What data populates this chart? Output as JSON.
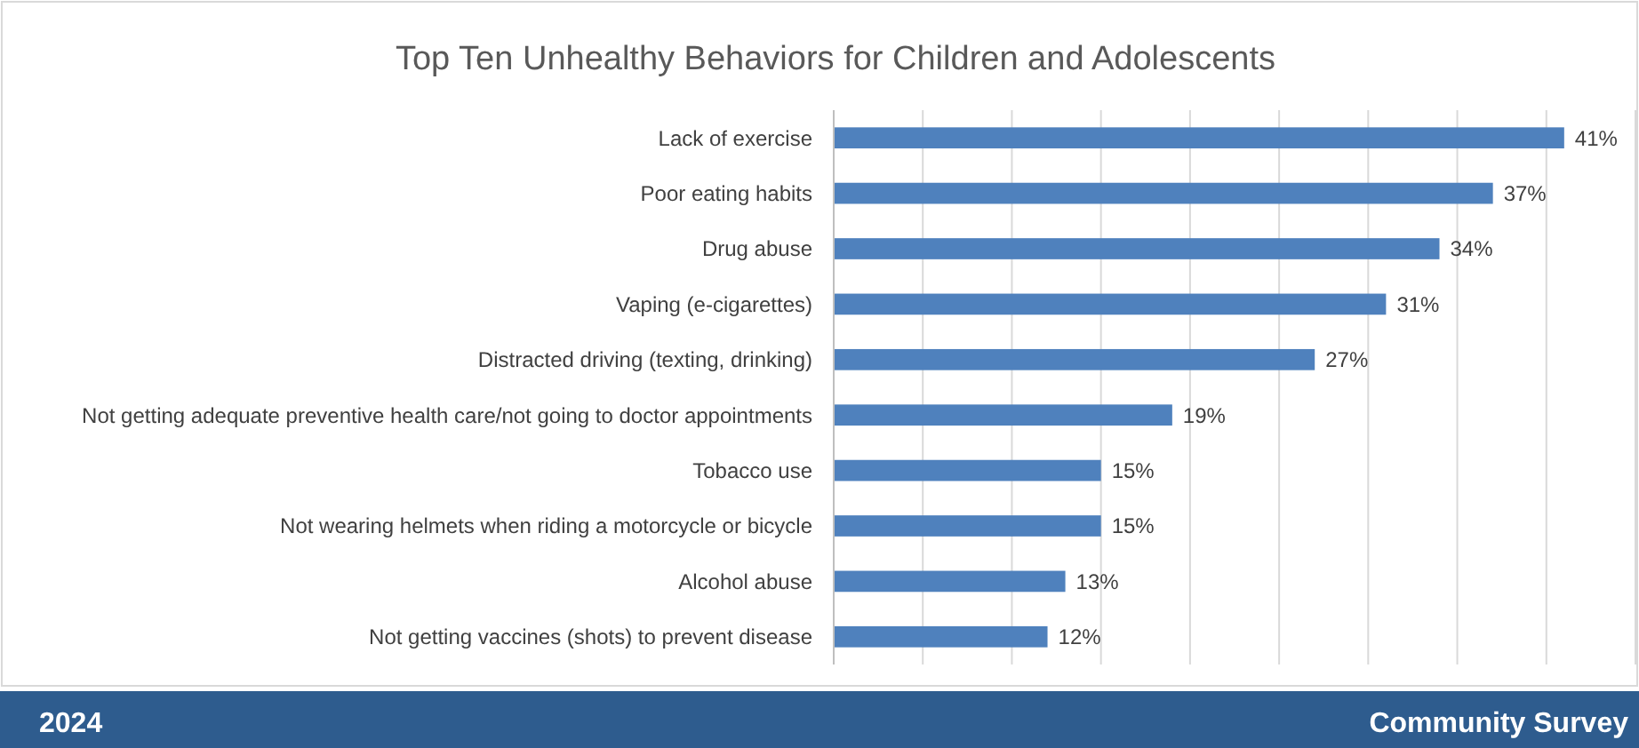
{
  "chart_data": {
    "type": "bar",
    "orientation": "horizontal",
    "title": "Top Ten Unhealthy Behaviors for Children and Adolescents",
    "categories": [
      "Lack of exercise",
      "Poor eating habits",
      "Drug abuse",
      "Vaping (e-cigarettes)",
      "Distracted driving (texting, drinking)",
      "Not getting adequate preventive health care/not going to doctor appointments",
      "Tobacco use",
      "Not wearing helmets when riding a motorcycle or bicycle",
      "Alcohol abuse",
      "Not getting vaccines (shots) to prevent disease"
    ],
    "values": [
      41,
      37,
      34,
      31,
      27,
      19,
      15,
      15,
      13,
      12
    ],
    "value_labels": [
      "41%",
      "37%",
      "34%",
      "31%",
      "27%",
      "19%",
      "15%",
      "15%",
      "13%",
      "12%"
    ],
    "color": "#4f81bd",
    "xlim": [
      0,
      45
    ],
    "xticks": [
      {
        "value": 0,
        "label": null
      },
      {
        "value": 5,
        "label": null
      },
      {
        "value": 10,
        "label": null
      },
      {
        "value": 15,
        "label": null
      },
      {
        "value": 20,
        "label": null
      },
      {
        "value": 25,
        "label": null
      },
      {
        "value": 30,
        "label": null
      },
      {
        "value": 35,
        "label": null
      },
      {
        "value": 40,
        "label": null
      },
      {
        "value": 45,
        "label": null
      }
    ],
    "grid": "x",
    "tick_labels": "y",
    "annotations": [
      "2024",
      "Community Survey"
    ]
  }
}
